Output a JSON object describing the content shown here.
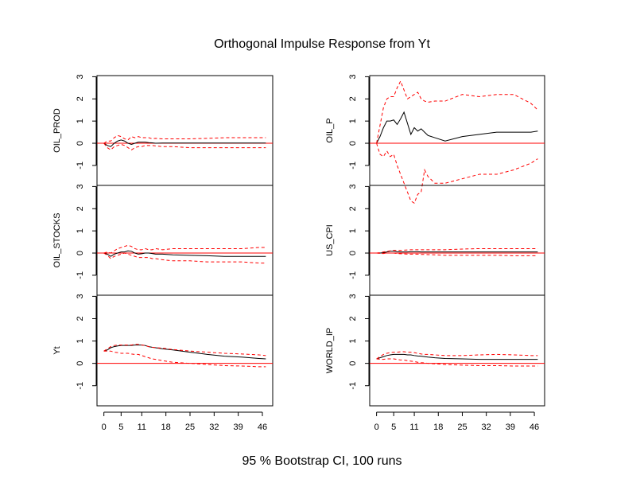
{
  "title": "Orthogonal Impulse Response from Yt",
  "caption": "95 % Bootstrap CI,  100 runs",
  "chart_data": [
    {
      "type": "line",
      "ylabel": "OIL_PROD",
      "x": [
        0,
        1,
        2,
        3,
        4,
        5,
        6,
        7,
        8,
        9,
        10,
        11,
        12,
        13,
        14,
        15,
        17,
        20,
        25,
        30,
        35,
        40,
        45,
        47
      ],
      "xlim": [
        -2,
        49
      ],
      "ylim": [
        -1.9,
        3.05
      ],
      "yticks": [
        -1,
        0,
        1,
        2,
        3
      ],
      "hline": 0,
      "hline_color": "#ff0000",
      "series": [
        {
          "color": "#000000",
          "dash": false,
          "values": [
            0,
            -0.1,
            -0.15,
            0,
            0.1,
            0.15,
            0.1,
            0,
            -0.05,
            0,
            0.05,
            0.05,
            0.05,
            0.03,
            0.02,
            0,
            0.01,
            0.01,
            0.01,
            0.01,
            0.01,
            0.01,
            0.01,
            0.01
          ]
        },
        {
          "color": "#ff0000",
          "dash": true,
          "values": [
            0,
            -0.2,
            -0.3,
            -0.15,
            -0.1,
            -0.05,
            -0.1,
            -0.2,
            -0.3,
            -0.2,
            -0.15,
            -0.15,
            -0.1,
            -0.1,
            -0.1,
            -0.12,
            -0.15,
            -0.15,
            -0.2,
            -0.2,
            -0.2,
            -0.2,
            -0.2,
            -0.2
          ]
        },
        {
          "color": "#ff0000",
          "dash": true,
          "values": [
            0,
            0.1,
            0.1,
            0.25,
            0.35,
            0.3,
            0.2,
            0.15,
            0.3,
            0.25,
            0.3,
            0.25,
            0.25,
            0.25,
            0.2,
            0.22,
            0.2,
            0.2,
            0.2,
            0.22,
            0.25,
            0.25,
            0.25,
            0.25
          ]
        }
      ]
    },
    {
      "type": "line",
      "ylabel": "OIL_STOCKS",
      "x": [
        0,
        1,
        2,
        3,
        4,
        5,
        6,
        7,
        8,
        9,
        10,
        11,
        12,
        13,
        14,
        15,
        17,
        20,
        25,
        30,
        35,
        40,
        45,
        47
      ],
      "xlim": [
        -2,
        49
      ],
      "ylim": [
        -1.9,
        3.05
      ],
      "yticks": [
        -1,
        0,
        1,
        2,
        3
      ],
      "hline": 0,
      "hline_color": "#ff0000",
      "series": [
        {
          "color": "#000000",
          "dash": false,
          "values": [
            0,
            -0.05,
            -0.15,
            -0.05,
            0,
            0.05,
            0.05,
            0.1,
            0.08,
            0,
            -0.05,
            -0.03,
            0,
            0,
            -0.02,
            -0.05,
            -0.05,
            -0.08,
            -0.1,
            -0.12,
            -0.15,
            -0.15,
            -0.15,
            -0.15
          ]
        },
        {
          "color": "#ff0000",
          "dash": true,
          "values": [
            0,
            -0.1,
            -0.25,
            -0.15,
            -0.1,
            -0.05,
            0,
            -0.05,
            -0.1,
            -0.15,
            -0.2,
            -0.2,
            -0.2,
            -0.2,
            -0.25,
            -0.25,
            -0.3,
            -0.35,
            -0.35,
            -0.4,
            -0.4,
            -0.4,
            -0.45,
            -0.45
          ]
        },
        {
          "color": "#ff0000",
          "dash": true,
          "values": [
            0,
            0.05,
            0,
            0.1,
            0.2,
            0.25,
            0.3,
            0.35,
            0.3,
            0.2,
            0.15,
            0.15,
            0.2,
            0.15,
            0.15,
            0.2,
            0.15,
            0.2,
            0.2,
            0.2,
            0.2,
            0.2,
            0.25,
            0.25
          ]
        }
      ]
    },
    {
      "type": "line",
      "ylabel": "Yt",
      "x": [
        0,
        1,
        2,
        3,
        4,
        5,
        6,
        7,
        8,
        9,
        10,
        11,
        12,
        13,
        14,
        15,
        17,
        20,
        25,
        30,
        35,
        40,
        45,
        47
      ],
      "xlim": [
        -2,
        49
      ],
      "ylim": [
        -1.9,
        3.05
      ],
      "yticks": [
        -1,
        0,
        1,
        2,
        3
      ],
      "xticks": [
        0,
        5,
        11,
        18,
        25,
        32,
        39,
        46
      ],
      "hline": 0,
      "hline_color": "#ff0000",
      "series": [
        {
          "color": "#000000",
          "dash": false,
          "values": [
            0.55,
            0.6,
            0.7,
            0.75,
            0.78,
            0.8,
            0.8,
            0.8,
            0.8,
            0.82,
            0.82,
            0.82,
            0.8,
            0.75,
            0.72,
            0.7,
            0.65,
            0.6,
            0.5,
            0.4,
            0.32,
            0.28,
            0.22,
            0.2
          ]
        },
        {
          "color": "#ff0000",
          "dash": true,
          "values": [
            0.55,
            0.55,
            0.55,
            0.5,
            0.48,
            0.45,
            0.45,
            0.45,
            0.42,
            0.4,
            0.4,
            0.35,
            0.3,
            0.25,
            0.2,
            0.18,
            0.12,
            0.05,
            0,
            -0.05,
            -0.1,
            -0.12,
            -0.15,
            -0.15
          ]
        },
        {
          "color": "#ff0000",
          "dash": true,
          "values": [
            0.55,
            0.65,
            0.75,
            0.8,
            0.82,
            0.82,
            0.82,
            0.82,
            0.82,
            0.85,
            0.85,
            0.82,
            0.8,
            0.75,
            0.72,
            0.7,
            0.68,
            0.62,
            0.55,
            0.5,
            0.45,
            0.42,
            0.38,
            0.35
          ]
        }
      ]
    },
    {
      "type": "line",
      "ylabel": "OIL_P",
      "x": [
        0,
        1,
        2,
        3,
        4,
        5,
        6,
        7,
        8,
        9,
        10,
        11,
        12,
        13,
        14,
        15,
        17,
        20,
        25,
        30,
        35,
        40,
        45,
        47
      ],
      "xlim": [
        -2,
        49
      ],
      "ylim": [
        -1.9,
        3.05
      ],
      "yticks": [
        -1,
        0,
        1,
        2,
        3
      ],
      "hline": 0,
      "hline_color": "#ff0000",
      "series": [
        {
          "color": "#000000",
          "dash": false,
          "values": [
            0,
            0.3,
            0.7,
            1.0,
            1.0,
            1.05,
            0.85,
            1.1,
            1.4,
            0.9,
            0.4,
            0.7,
            0.55,
            0.65,
            0.5,
            0.35,
            0.25,
            0.1,
            0.3,
            0.4,
            0.5,
            0.5,
            0.5,
            0.55
          ]
        },
        {
          "color": "#ff0000",
          "dash": true,
          "values": [
            0,
            -0.5,
            -0.6,
            -0.35,
            -0.6,
            -0.5,
            -1.0,
            -1.4,
            -1.8,
            -2.2,
            -2.6,
            -2.7,
            -2.3,
            -2.2,
            -1.2,
            -1.5,
            -1.8,
            -1.8,
            -1.6,
            -1.4,
            -1.4,
            -1.2,
            -0.9,
            -0.7
          ]
        },
        {
          "color": "#ff0000",
          "dash": true,
          "values": [
            0,
            0.8,
            1.6,
            2.0,
            2.1,
            2.1,
            2.5,
            2.8,
            2.4,
            2.0,
            2.1,
            2.2,
            2.3,
            2.0,
            1.9,
            1.85,
            1.9,
            1.9,
            2.2,
            2.1,
            2.2,
            2.2,
            1.8,
            1.5
          ]
        }
      ]
    },
    {
      "type": "line",
      "ylabel": "US_CPI",
      "x": [
        0,
        1,
        2,
        3,
        4,
        5,
        6,
        7,
        8,
        9,
        10,
        11,
        12,
        13,
        14,
        15,
        17,
        20,
        25,
        30,
        35,
        40,
        45,
        47
      ],
      "xlim": [
        -2,
        49
      ],
      "ylim": [
        -1.9,
        3.05
      ],
      "yticks": [
        -1,
        0,
        1,
        2,
        3
      ],
      "hline": 0,
      "hline_color": "#ff0000",
      "series": [
        {
          "color": "#000000",
          "dash": false,
          "values": [
            0,
            0,
            0.02,
            0.05,
            0.08,
            0.08,
            0.06,
            0.05,
            0.05,
            0.05,
            0.06,
            0.06,
            0.06,
            0.05,
            0.05,
            0.05,
            0.05,
            0.05,
            0.05,
            0.05,
            0.05,
            0.05,
            0.05,
            0.05
          ]
        },
        {
          "color": "#ff0000",
          "dash": true,
          "values": [
            0,
            -0.02,
            -0.02,
            0,
            0,
            0,
            -0.02,
            -0.03,
            -0.04,
            -0.05,
            -0.05,
            -0.05,
            -0.05,
            -0.06,
            -0.06,
            -0.07,
            -0.08,
            -0.1,
            -0.1,
            -0.1,
            -0.1,
            -0.12,
            -0.12,
            -0.12
          ]
        },
        {
          "color": "#ff0000",
          "dash": true,
          "values": [
            0,
            0.02,
            0.05,
            0.08,
            0.1,
            0.12,
            0.12,
            0.12,
            0.13,
            0.14,
            0.15,
            0.15,
            0.15,
            0.15,
            0.15,
            0.15,
            0.15,
            0.15,
            0.18,
            0.2,
            0.2,
            0.2,
            0.2,
            0.2
          ]
        }
      ]
    },
    {
      "type": "line",
      "ylabel": "WORLD_IP",
      "x": [
        0,
        1,
        2,
        3,
        4,
        5,
        6,
        7,
        8,
        9,
        10,
        11,
        12,
        13,
        14,
        15,
        17,
        20,
        25,
        30,
        35,
        40,
        45,
        47
      ],
      "xlim": [
        -2,
        49
      ],
      "ylim": [
        -1.9,
        3.05
      ],
      "yticks": [
        -1,
        0,
        1,
        2,
        3
      ],
      "xticks": [
        0,
        5,
        11,
        18,
        25,
        32,
        39,
        46
      ],
      "hline": 0,
      "hline_color": "#ff0000",
      "series": [
        {
          "color": "#000000",
          "dash": false,
          "values": [
            0.2,
            0.25,
            0.3,
            0.35,
            0.38,
            0.4,
            0.4,
            0.4,
            0.4,
            0.38,
            0.38,
            0.35,
            0.33,
            0.32,
            0.3,
            0.28,
            0.25,
            0.22,
            0.2,
            0.18,
            0.18,
            0.18,
            0.18,
            0.18
          ]
        },
        {
          "color": "#ff0000",
          "dash": true,
          "values": [
            0.2,
            0.18,
            0.18,
            0.2,
            0.2,
            0.2,
            0.18,
            0.15,
            0.15,
            0.12,
            0.1,
            0.08,
            0.05,
            0.03,
            0.02,
            0,
            -0.02,
            -0.05,
            -0.08,
            -0.1,
            -0.1,
            -0.12,
            -0.12,
            -0.12
          ]
        },
        {
          "color": "#ff0000",
          "dash": true,
          "values": [
            0.2,
            0.3,
            0.4,
            0.45,
            0.48,
            0.5,
            0.5,
            0.52,
            0.52,
            0.5,
            0.5,
            0.48,
            0.45,
            0.42,
            0.4,
            0.4,
            0.38,
            0.35,
            0.35,
            0.38,
            0.4,
            0.38,
            0.35,
            0.35
          ]
        }
      ]
    }
  ]
}
